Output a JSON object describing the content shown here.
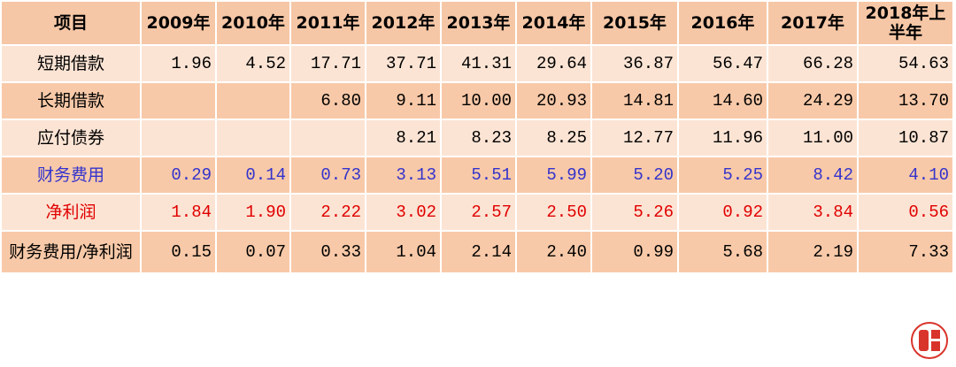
{
  "table": {
    "header": [
      "项目",
      "2009年",
      "2010年",
      "2011年",
      "2012年",
      "2013年",
      "2014年",
      "2015年",
      "2016年",
      "2017年",
      "2018年上半年"
    ],
    "rows": [
      [
        "短期借款",
        "1.96",
        "4.52",
        "17.71",
        "37.71",
        "41.31",
        "29.64",
        "36.87",
        "56.47",
        "66.28",
        "54.63"
      ],
      [
        "长期借款",
        null,
        null,
        "6.80",
        "9.11",
        "10.00",
        "20.93",
        "14.81",
        "14.60",
        "24.29",
        "13.70"
      ],
      [
        "应付债券",
        null,
        null,
        null,
        "8.21",
        "8.23",
        "8.25",
        "12.77",
        "11.96",
        "11.00",
        "10.87"
      ],
      [
        "财务费用",
        "0.29",
        "0.14",
        "0.73",
        "3.13",
        "5.51",
        "5.99",
        "5.20",
        "5.25",
        "8.42",
        "4.10"
      ],
      [
        "净利润",
        "1.84",
        "1.90",
        "2.22",
        "3.02",
        "2.57",
        "2.50",
        "5.26",
        "0.92",
        "3.84",
        "0.56"
      ],
      [
        "财务费用/净利润",
        "0.15",
        "0.07",
        "0.33",
        "1.04",
        "2.14",
        "2.40",
        "0.99",
        "5.68",
        "2.19",
        "7.33"
      ]
    ],
    "row_colors": [
      "#000000",
      "#000000",
      "#000000",
      "#3333cc",
      "#e00000",
      "#000000"
    ]
  }
}
